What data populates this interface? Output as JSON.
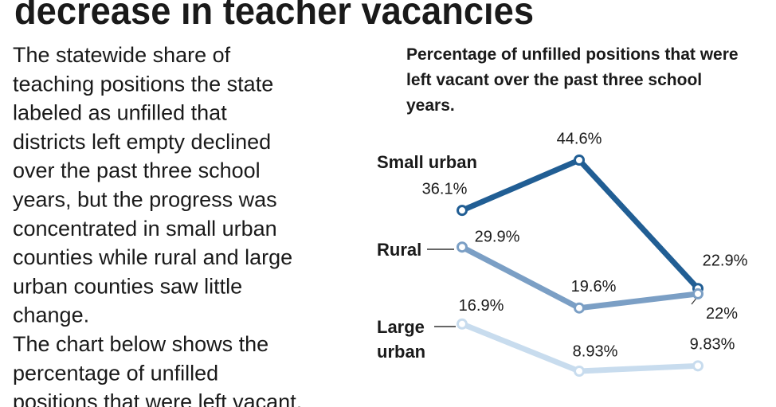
{
  "headline": "decrease in teacher vacancies",
  "body": [
    "The statewide share of",
    "teaching positions the state",
    "labeled as unfilled that",
    "districts left empty declined",
    "over the past three school",
    "years, but the progress was",
    "concentrated in small urban",
    "counties while rural and large",
    "urban counties saw little",
    "change.",
    "The chart below shows the",
    "percentage of unfilled",
    "positions that were left vacant."
  ],
  "chart_data": {
    "type": "line",
    "title": "Percentage of unfilled positions that were left vacant over the past three school years.",
    "categories": [
      null,
      null,
      null
    ],
    "series": [
      {
        "name": "Small urban",
        "color": "#215e94",
        "values": [
          36.1,
          44.6,
          22.9
        ],
        "value_labels": [
          "36.1%",
          "44.6%",
          "22.9%"
        ]
      },
      {
        "name": "Rural",
        "color": "#7b9fc5",
        "values": [
          29.9,
          19.6,
          22
        ],
        "value_labels": [
          "29.9%",
          "19.6%",
          "22%"
        ]
      },
      {
        "name": "Large urban",
        "color": "#c8dcee",
        "values": [
          16.9,
          8.93,
          9.83
        ],
        "value_labels": [
          "16.9%",
          "8.93%",
          "9.83%"
        ]
      }
    ]
  }
}
